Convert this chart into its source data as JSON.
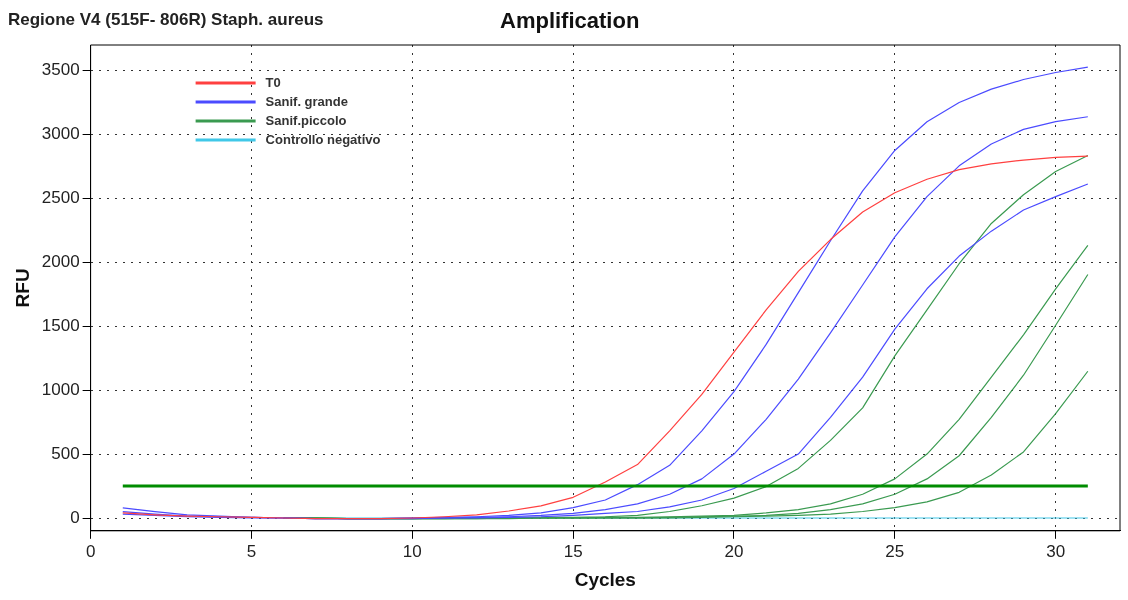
{
  "chart_data": {
    "type": "line",
    "title": "Amplification",
    "subtitle": "Regione V4 (515F- 806R) Staph. aureus",
    "xlabel": "Cycles",
    "ylabel": "RFU",
    "x": [
      1,
      2,
      3,
      4,
      5,
      6,
      7,
      8,
      9,
      10,
      11,
      12,
      13,
      14,
      15,
      16,
      17,
      18,
      19,
      20,
      21,
      22,
      23,
      24,
      25,
      26,
      27,
      28,
      29,
      30,
      31
    ],
    "series": [
      {
        "name": "T0",
        "color": "#ff4040",
        "values": [
          40,
          25,
          15,
          10,
          5,
          0,
          -5,
          -5,
          -5,
          0,
          10,
          25,
          55,
          95,
          162,
          282,
          418,
          682,
          967,
          1298,
          1628,
          1929,
          2178,
          2394,
          2544,
          2650,
          2725,
          2770,
          2800,
          2821,
          2830
        ]
      },
      {
        "name": "Sanif. grande",
        "color": "#4b4bff",
        "values": [
          80,
          50,
          25,
          15,
          5,
          0,
          -5,
          -5,
          -5,
          0,
          5,
          10,
          20,
          40,
          81,
          141,
          261,
          412,
          682,
          988,
          1358,
          1763,
          2169,
          2559,
          2875,
          3100,
          3250,
          3355,
          3430,
          3485,
          3527
        ]
      },
      {
        "color": "#4b4bff",
        "values": [
          50,
          30,
          15,
          10,
          5,
          0,
          -5,
          -5,
          -5,
          0,
          0,
          5,
          10,
          20,
          36,
          66,
          111,
          186,
          306,
          500,
          772,
          1087,
          1448,
          1823,
          2199,
          2514,
          2755,
          2926,
          3040,
          3100,
          3139
        ]
      },
      {
        "color": "#4b4bff",
        "values": [
          30,
          20,
          10,
          5,
          0,
          0,
          -5,
          -5,
          -5,
          -5,
          0,
          0,
          5,
          10,
          21,
          36,
          51,
          87,
          141,
          231,
          366,
          500,
          787,
          1102,
          1478,
          1793,
          2049,
          2244,
          2409,
          2514,
          2613
        ]
      },
      {
        "name": "Sanif.piccolo",
        "color": "#3a9a50",
        "values": [
          null,
          null,
          null,
          null,
          null,
          0,
          0,
          -5,
          -5,
          -5,
          0,
          0,
          0,
          5,
          5,
          10,
          21,
          51,
          96,
          156,
          246,
          388,
          607,
          862,
          1268,
          1628,
          1989,
          2304,
          2529,
          2710,
          2836
        ]
      },
      {
        "color": "#3a9a50",
        "values": [
          null,
          null,
          null,
          null,
          null,
          0,
          0,
          -5,
          -5,
          -5,
          -5,
          0,
          0,
          0,
          0,
          5,
          5,
          10,
          15,
          21,
          40,
          66,
          111,
          186,
          306,
          500,
          772,
          1102,
          1433,
          1793,
          2133
        ]
      },
      {
        "color": "#3a9a50",
        "values": [
          null,
          null,
          null,
          null,
          null,
          0,
          0,
          -5,
          -5,
          -5,
          -5,
          -5,
          0,
          0,
          0,
          0,
          0,
          5,
          10,
          15,
          20,
          36,
          66,
          111,
          186,
          306,
          487,
          787,
          1117,
          1508,
          1905
        ]
      },
      {
        "color": "#3a9a50",
        "values": [
          null,
          null,
          null,
          null,
          null,
          0,
          0,
          -5,
          -5,
          -5,
          -5,
          -5,
          -5,
          0,
          0,
          0,
          0,
          0,
          5,
          10,
          15,
          20,
          30,
          51,
          81,
          126,
          201,
          336,
          517,
          817,
          1148
        ]
      },
      {
        "name": "Controllo negativo",
        "color": "#40c8e8",
        "values": [
          null,
          null,
          null,
          null,
          null,
          0,
          0,
          0,
          0,
          0,
          0,
          0,
          0,
          0,
          0,
          0,
          0,
          0,
          0,
          0,
          0,
          0,
          0,
          0,
          0,
          0,
          0,
          0,
          0,
          0,
          0
        ]
      }
    ],
    "xlim": [
      0,
      32
    ],
    "xticks": [
      0,
      5,
      10,
      15,
      20,
      25,
      30
    ],
    "ylim": [
      -100,
      3700
    ],
    "yticks": [
      0,
      500,
      1000,
      1500,
      2000,
      2500,
      3000,
      3500
    ],
    "ref_lines": [
      {
        "axis": "y",
        "value": 250,
        "color": "#008c00"
      }
    ],
    "grid": true,
    "legend": "top left",
    "marker": "none",
    "line_style": "solid"
  }
}
